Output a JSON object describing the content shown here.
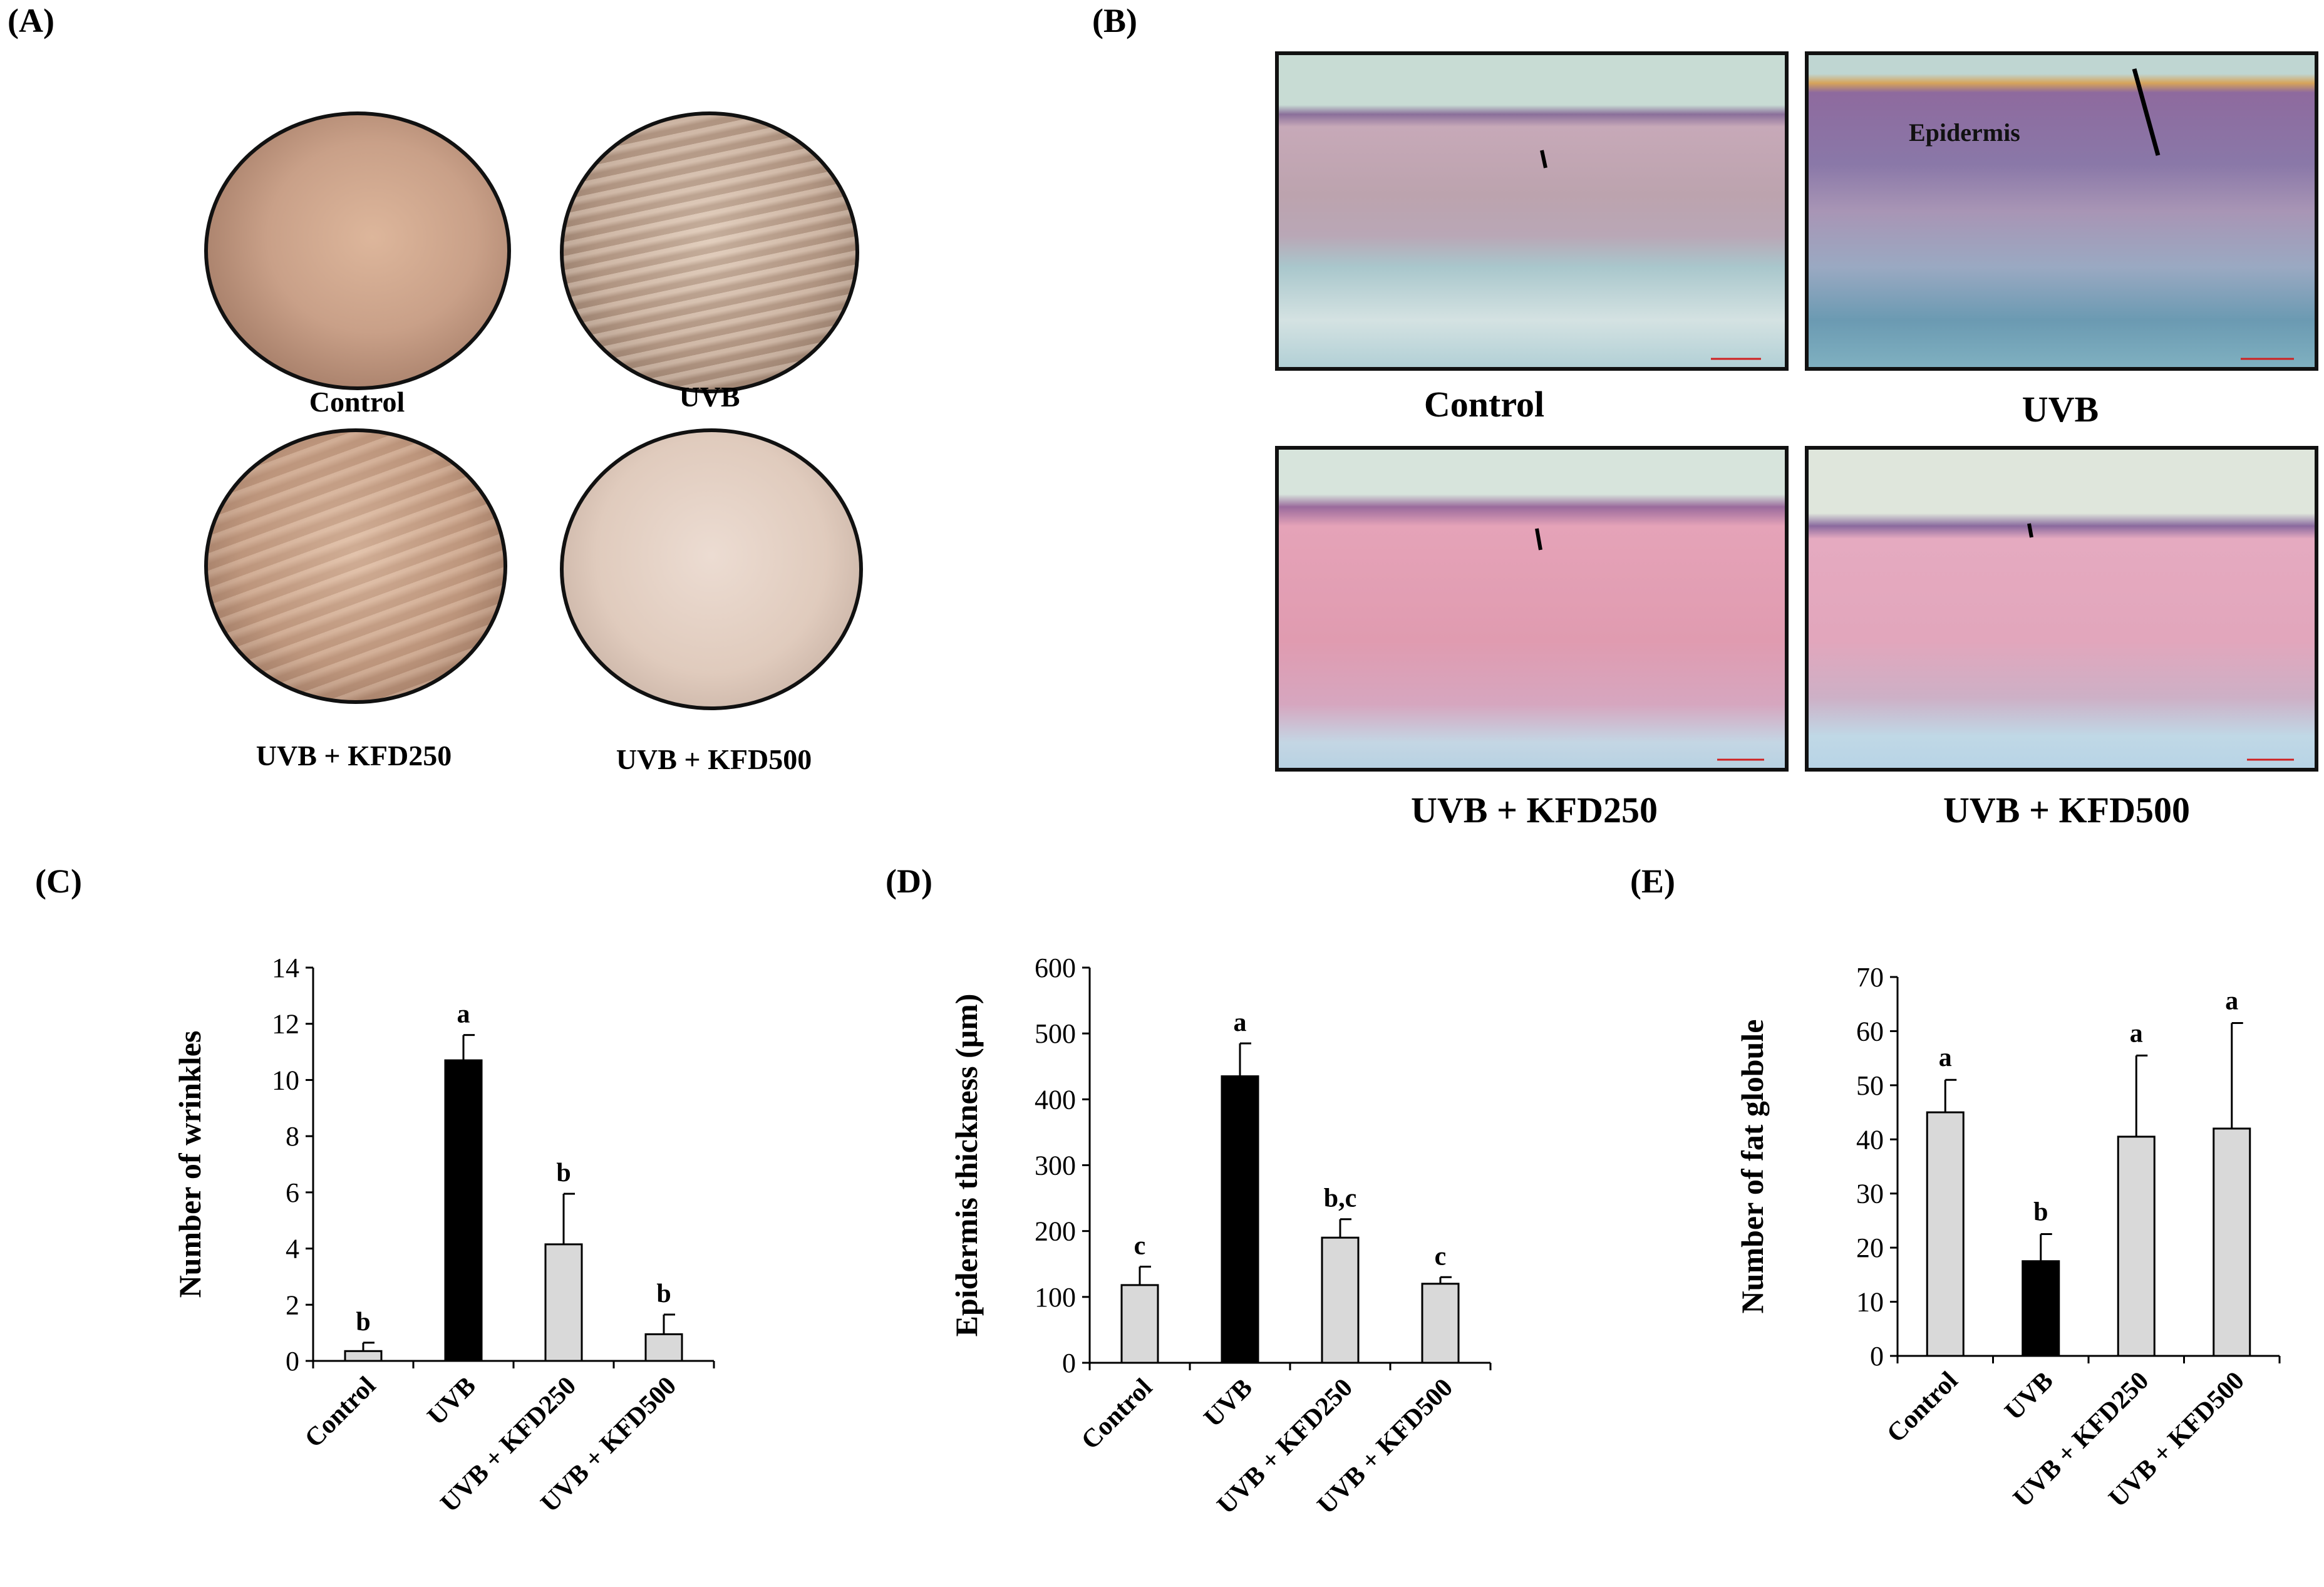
{
  "panel_a": {
    "letter": "(A)",
    "captions": [
      "Control",
      "UVB",
      "UVB + KFD250",
      "UVB + KFD500"
    ]
  },
  "panel_b": {
    "letter": "(B)",
    "captions": [
      "Control",
      "UVB",
      "UVB + KFD250",
      "UVB + KFD500"
    ],
    "annotation": "Epidermis"
  },
  "chart_data": [
    {
      "panel": "(C)",
      "type": "bar",
      "categories": [
        "Control",
        "UVB",
        "UVB + KFD250",
        "UVB + KFD500"
      ],
      "values": [
        0.35,
        10.7,
        4.15,
        0.95
      ],
      "errors": [
        0.3,
        0.9,
        1.8,
        0.7
      ],
      "letters": [
        "b",
        "a",
        "b",
        "b"
      ],
      "colors": [
        "#d9d9d9",
        "#000000",
        "#d9d9d9",
        "#d9d9d9"
      ],
      "ylabel": "Number of wrinkles",
      "ylim": [
        0,
        14
      ],
      "yticks": [
        0,
        2,
        4,
        6,
        8,
        10,
        12,
        14
      ],
      "grid": false
    },
    {
      "panel": "(D)",
      "type": "bar",
      "categories": [
        "Control",
        "UVB",
        "UVB + KFD250",
        "UVB + KFD500"
      ],
      "values": [
        118,
        435,
        190,
        120
      ],
      "errors": [
        28,
        50,
        28,
        10
      ],
      "letters": [
        "c",
        "a",
        "b,c",
        "c"
      ],
      "colors": [
        "#d9d9d9",
        "#000000",
        "#d9d9d9",
        "#d9d9d9"
      ],
      "ylabel": "Epidermis thickness (μm)",
      "ylim": [
        0,
        600
      ],
      "yticks": [
        0,
        100,
        200,
        300,
        400,
        500,
        600
      ],
      "grid": false
    },
    {
      "panel": "(E)",
      "type": "bar",
      "categories": [
        "Control",
        "UVB",
        "UVB + KFD250",
        "UVB + KFD500"
      ],
      "values": [
        45,
        17.5,
        40.5,
        42
      ],
      "errors": [
        6,
        5,
        15,
        19.5
      ],
      "letters": [
        "a",
        "b",
        "a",
        "a"
      ],
      "colors": [
        "#d9d9d9",
        "#000000",
        "#d9d9d9",
        "#d9d9d9"
      ],
      "ylabel": "Number of fat globule",
      "ylim": [
        0,
        70
      ],
      "yticks": [
        0,
        10,
        20,
        30,
        40,
        50,
        60,
        70
      ],
      "grid": false
    }
  ]
}
